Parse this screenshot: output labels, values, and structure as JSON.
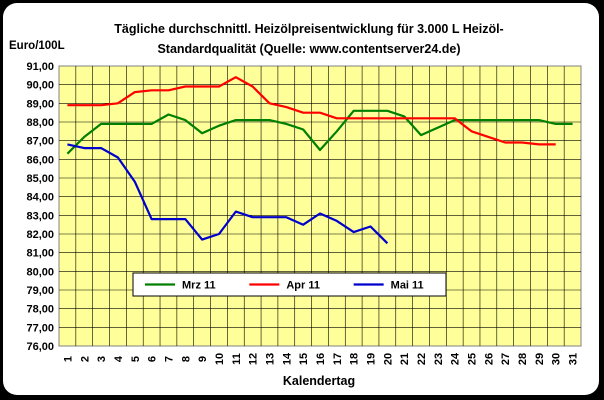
{
  "chart_data": {
    "type": "line",
    "title_line1": "Tägliche durchschnittl. Heizölpreisentwicklung für 3.000 L Heizöl-",
    "title_line2": "Standardqualität (Quelle: www.contentserver24.de)",
    "ylabel": "Euro/100L",
    "xlabel": "Kalendertag",
    "x": [
      1,
      2,
      3,
      4,
      5,
      6,
      7,
      8,
      9,
      10,
      11,
      12,
      13,
      14,
      15,
      16,
      17,
      18,
      19,
      20,
      21,
      22,
      23,
      24,
      25,
      26,
      27,
      28,
      29,
      30,
      31
    ],
    "ylim": [
      76,
      91
    ],
    "yticks": [
      "91,00",
      "90,00",
      "89,00",
      "88,00",
      "87,00",
      "86,00",
      "85,00",
      "84,00",
      "83,00",
      "82,00",
      "81,00",
      "80,00",
      "79,00",
      "78,00",
      "77,00",
      "76,00"
    ],
    "grid": true,
    "legend_position": "center",
    "series": [
      {
        "name": "Mrz 11",
        "color": "#008000",
        "values": [
          86.3,
          87.2,
          87.9,
          87.9,
          87.9,
          87.9,
          88.4,
          88.1,
          87.4,
          87.8,
          88.1,
          88.1,
          88.1,
          87.9,
          87.6,
          86.5,
          87.5,
          88.6,
          88.6,
          88.6,
          88.3,
          87.3,
          87.7,
          88.1,
          88.1,
          88.1,
          88.1,
          88.1,
          88.1,
          87.9,
          87.9
        ]
      },
      {
        "name": "Apr 11",
        "color": "#ff0000",
        "values": [
          88.9,
          88.9,
          88.9,
          89.0,
          89.6,
          89.7,
          89.7,
          89.9,
          89.9,
          89.9,
          90.4,
          89.9,
          89.0,
          88.8,
          88.5,
          88.5,
          88.2,
          88.2,
          88.2,
          88.2,
          88.2,
          88.2,
          88.2,
          88.2,
          87.5,
          87.2,
          86.9,
          86.9,
          86.8,
          86.8,
          null
        ]
      },
      {
        "name": "Mai 11",
        "color": "#0000cc",
        "values": [
          86.8,
          86.6,
          86.6,
          86.1,
          84.8,
          82.8,
          82.8,
          82.8,
          81.7,
          82.0,
          83.2,
          82.9,
          82.9,
          82.9,
          82.5,
          83.1,
          82.7,
          82.1,
          82.4,
          81.5,
          null,
          null,
          null,
          null,
          null,
          null,
          null,
          null,
          null,
          null,
          null
        ]
      }
    ]
  }
}
